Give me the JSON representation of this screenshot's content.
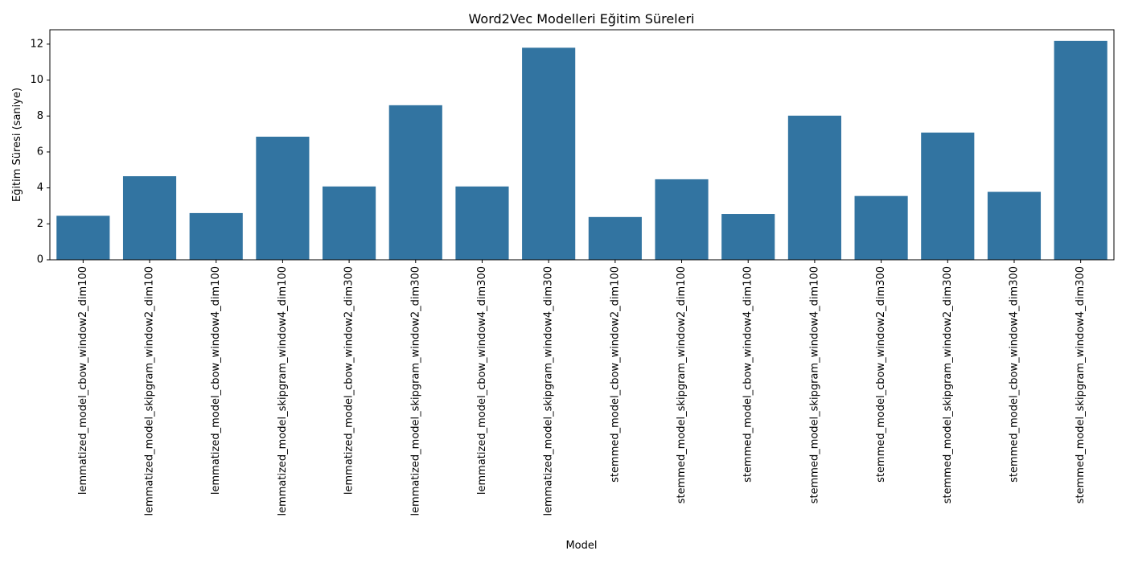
{
  "chart_data": {
    "type": "bar",
    "title": "Word2Vec Modelleri Eğitim Süreleri",
    "xlabel": "Model",
    "ylabel": "Eğitim Süresi (saniye)",
    "ylim": [
      0,
      12.8
    ],
    "yticks": [
      0,
      2,
      4,
      6,
      8,
      10,
      12
    ],
    "grid": false,
    "bar_color": "#3274a1",
    "categories": [
      "lemmatized_model_cbow_window2_dim100",
      "lemmatized_model_skipgram_window2_dim100",
      "lemmatized_model_cbow_window4_dim100",
      "lemmatized_model_skipgram_window4_dim100",
      "lemmatized_model_cbow_window2_dim300",
      "lemmatized_model_skipgram_window2_dim300",
      "lemmatized_model_cbow_window4_dim300",
      "lemmatized_model_skipgram_window4_dim300",
      "stemmed_model_cbow_window2_dim100",
      "stemmed_model_skipgram_window2_dim100",
      "stemmed_model_cbow_window4_dim100",
      "stemmed_model_skipgram_window4_dim100",
      "stemmed_model_cbow_window2_dim300",
      "stemmed_model_skipgram_window2_dim300",
      "stemmed_model_cbow_window4_dim300",
      "stemmed_model_skipgram_window4_dim300"
    ],
    "values": [
      2.45,
      4.65,
      2.6,
      6.85,
      4.08,
      8.6,
      4.08,
      11.8,
      2.38,
      4.48,
      2.55,
      8.02,
      3.55,
      7.08,
      3.78,
      12.18
    ]
  }
}
